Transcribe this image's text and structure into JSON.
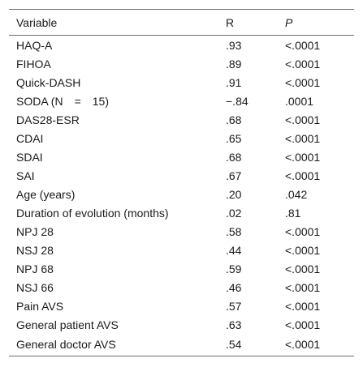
{
  "table": {
    "headers": [
      "Variable",
      "R",
      "P"
    ],
    "rows": [
      [
        "HAQ-A",
        ".93",
        "<.0001"
      ],
      [
        "FIHOA",
        ".89",
        "<.0001"
      ],
      [
        "Quick-DASH",
        ".91",
        "<.0001"
      ],
      [
        "SODA (N  =  15)",
        "−.84",
        ".0001"
      ],
      [
        "DAS28-ESR",
        ".68",
        "<.0001"
      ],
      [
        "CDAI",
        ".65",
        "<.0001"
      ],
      [
        "SDAI",
        ".68",
        "<.0001"
      ],
      [
        "SAI",
        ".67",
        "<.0001"
      ],
      [
        "Age (years)",
        ".20",
        ".042"
      ],
      [
        "Duration of evolution (months)",
        ".02",
        ".81"
      ],
      [
        "NPJ 28",
        ".58",
        "<.0001"
      ],
      [
        "NSJ 28",
        ".44",
        "<.0001"
      ],
      [
        "NPJ 68",
        ".59",
        "<.0001"
      ],
      [
        "NSJ 66",
        ".46",
        "<.0001"
      ],
      [
        "Pain AVS",
        ".57",
        "<.0001"
      ],
      [
        "General patient AVS",
        ".63",
        "<.0001"
      ],
      [
        "General doctor AVS",
        ".54",
        "<.0001"
      ]
    ]
  }
}
